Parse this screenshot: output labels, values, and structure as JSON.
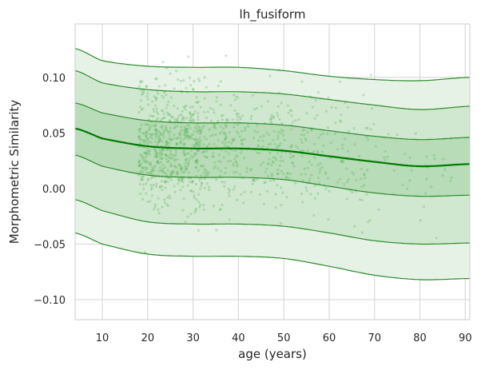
{
  "chart_data": {
    "type": "scatter",
    "title": "lh_fusiform",
    "xlabel": "age (years)",
    "ylabel": "Morphometric Similarity",
    "xlim": [
      4,
      91
    ],
    "ylim": [
      -0.118,
      0.148
    ],
    "xticks": [
      10,
      20,
      30,
      40,
      50,
      60,
      70,
      80,
      90
    ],
    "yticks": [
      -0.1,
      -0.05,
      0.0,
      0.05,
      0.1
    ],
    "xtick_labels": [
      "10",
      "20",
      "30",
      "40",
      "50",
      "60",
      "70",
      "80",
      "90"
    ],
    "ytick_labels": [
      "−0.10",
      "−0.05",
      "0.00",
      "0.05",
      "0.10"
    ],
    "grid": true,
    "colors": {
      "band_outer": "#e5f2e5",
      "band_mid": "#d0e8d0",
      "band_inner": "#b7dcb7",
      "curve": "#2e8b2e",
      "median": "#007a00",
      "points": "#5fb35f",
      "grid": "#d9d9d9",
      "frame": "#cccccc"
    },
    "age_knots": [
      4,
      10,
      20,
      30,
      40,
      50,
      60,
      70,
      80,
      91
    ],
    "centiles": [
      {
        "name": "p1",
        "values": [
          -0.04,
          -0.05,
          -0.059,
          -0.061,
          -0.061,
          -0.063,
          -0.07,
          -0.078,
          -0.082,
          -0.081
        ]
      },
      {
        "name": "p5",
        "values": [
          -0.01,
          -0.02,
          -0.03,
          -0.032,
          -0.032,
          -0.034,
          -0.04,
          -0.047,
          -0.05,
          -0.049
        ]
      },
      {
        "name": "p25",
        "values": [
          0.03,
          0.02,
          0.012,
          0.01,
          0.01,
          0.008,
          0.002,
          -0.004,
          -0.007,
          -0.006
        ]
      },
      {
        "name": "p50",
        "values": [
          0.054,
          0.045,
          0.038,
          0.036,
          0.036,
          0.034,
          0.029,
          0.024,
          0.02,
          0.022
        ]
      },
      {
        "name": "p75",
        "values": [
          0.077,
          0.068,
          0.061,
          0.059,
          0.059,
          0.057,
          0.052,
          0.047,
          0.044,
          0.046
        ]
      },
      {
        "name": "p95",
        "values": [
          0.106,
          0.095,
          0.089,
          0.087,
          0.087,
          0.085,
          0.08,
          0.075,
          0.071,
          0.074
        ]
      },
      {
        "name": "p99",
        "values": [
          0.126,
          0.115,
          0.11,
          0.109,
          0.109,
          0.106,
          0.101,
          0.098,
          0.097,
          0.1
        ]
      }
    ],
    "scatter_summary": {
      "n_points": 1150,
      "age_range": [
        18,
        87
      ],
      "dense_age_range": [
        18,
        40
      ]
    },
    "scatter_density_by_age": [
      {
        "age_range": [
          18,
          25
        ],
        "weight": 0.3
      },
      {
        "age_range": [
          25,
          32
        ],
        "weight": 0.26
      },
      {
        "age_range": [
          32,
          40
        ],
        "weight": 0.14
      },
      {
        "age_range": [
          40,
          50
        ],
        "weight": 0.12
      },
      {
        "age_range": [
          50,
          60
        ],
        "weight": 0.09
      },
      {
        "age_range": [
          60,
          70
        ],
        "weight": 0.06
      },
      {
        "age_range": [
          70,
          87
        ],
        "weight": 0.03
      }
    ]
  }
}
